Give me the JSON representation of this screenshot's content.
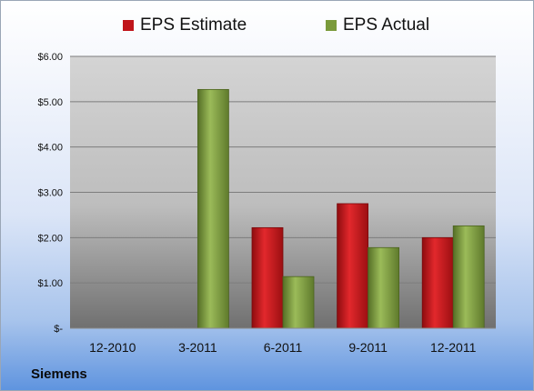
{
  "company": "Siemens",
  "chart_data": {
    "type": "bar",
    "title": "",
    "xlabel": "",
    "ylabel": "",
    "categories": [
      "12-2010",
      "3-2011",
      "6-2011",
      "9-2011",
      "12-2011"
    ],
    "series": [
      {
        "name": "EPS Estimate",
        "color": "#c0141a",
        "values": [
          null,
          null,
          2.22,
          2.75,
          2.0
        ]
      },
      {
        "name": "EPS Actual",
        "color": "#7a9a3a",
        "values": [
          null,
          5.27,
          1.14,
          1.78,
          2.26
        ]
      }
    ],
    "ylim": [
      0,
      6
    ],
    "yticks": [
      0,
      1,
      2,
      3,
      4,
      5,
      6
    ],
    "ytick_labels": [
      "$-",
      "$1.00",
      "$2.00",
      "$3.00",
      "$4.00",
      "$5.00",
      "$6.00"
    ],
    "grid": true,
    "legend_position": "top"
  }
}
